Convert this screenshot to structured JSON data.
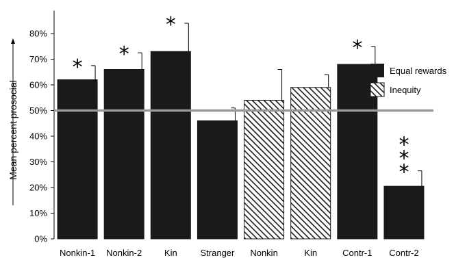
{
  "chart_data": {
    "type": "bar",
    "title": "",
    "xlabel": "",
    "ylabel": "Mean percent prosocial",
    "ylim": [
      0,
      90
    ],
    "yticks": [
      0,
      10,
      20,
      30,
      40,
      50,
      60,
      70,
      80
    ],
    "ytick_labels": [
      "0%",
      "10%",
      "20%",
      "30%",
      "40%",
      "50%",
      "60%",
      "70%",
      "80%"
    ],
    "reference_line": 50,
    "reference_line_color": "#999999",
    "series": [
      {
        "name": "Equal rewards",
        "fill": "solid",
        "color": "#1a1a1a"
      },
      {
        "name": "Inequity",
        "fill": "hatched",
        "color": "#1a1a1a"
      }
    ],
    "bars": [
      {
        "category": "Nonkin-1",
        "value": 62,
        "error": 5.5,
        "series": "Equal rewards",
        "annotation": "*"
      },
      {
        "category": "Nonkin-2",
        "value": 66,
        "error": 6.5,
        "series": "Equal rewards",
        "annotation": "*"
      },
      {
        "category": "Kin",
        "value": 73,
        "error": 11,
        "series": "Equal rewards",
        "annotation": "*"
      },
      {
        "category": "Stranger",
        "value": 46,
        "error": 5,
        "series": "Equal rewards",
        "annotation": ""
      },
      {
        "category": "Nonkin",
        "value": 54,
        "error": 12,
        "series": "Inequity",
        "annotation": ""
      },
      {
        "category": "Kin",
        "value": 59,
        "error": 5,
        "series": "Inequity",
        "annotation": ""
      },
      {
        "category": "Contr-1",
        "value": 68,
        "error": 7,
        "series": "Equal rewards",
        "annotation": "*"
      },
      {
        "category": "Contr-2",
        "value": 20.5,
        "error": 6,
        "series": "Equal rewards",
        "annotation": "***"
      }
    ],
    "legend_position": "right"
  }
}
